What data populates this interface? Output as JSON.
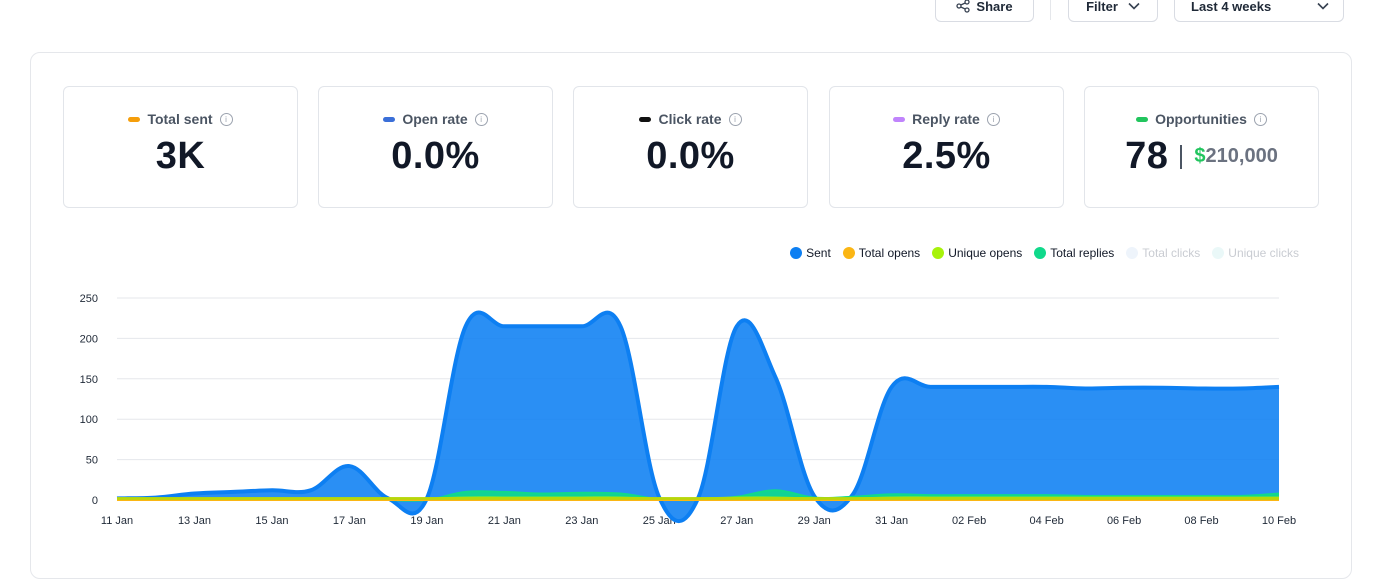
{
  "toolbar": {
    "share_label": "Share",
    "filter_label": "Filter",
    "range_label": "Last 4 weeks"
  },
  "stats": [
    {
      "label": "Total sent",
      "value": "3K",
      "color": "#f59e0b"
    },
    {
      "label": "Open rate",
      "value": "0.0%",
      "color": "#3b6fd8"
    },
    {
      "label": "Click rate",
      "value": "0.0%",
      "color": "#111111"
    },
    {
      "label": "Reply rate",
      "value": "2.5%",
      "color": "#c084fc"
    }
  ],
  "opportunities": {
    "label": "Opportunities",
    "count": "78",
    "currency": "$",
    "amount": "210,000",
    "color": "#22c55e"
  },
  "legend": [
    {
      "label": "Sent",
      "color": "#0d7ff2",
      "dim": false
    },
    {
      "label": "Total opens",
      "color": "#fbb614",
      "dim": false
    },
    {
      "label": "Unique opens",
      "color": "#a7f20b",
      "dim": false
    },
    {
      "label": "Total replies",
      "color": "#10d98b",
      "dim": false
    },
    {
      "label": "Total clicks",
      "color": "#eef4fb",
      "dim": true
    },
    {
      "label": "Unique clicks",
      "color": "#eaf8f8",
      "dim": true
    }
  ],
  "chart_data": {
    "type": "area",
    "ylim": [
      0,
      250
    ],
    "yticks": [
      0,
      50,
      100,
      150,
      200,
      250
    ],
    "x": [
      "11 Jan",
      "12 Jan",
      "13 Jan",
      "14 Jan",
      "15 Jan",
      "16 Jan",
      "17 Jan",
      "18 Jan",
      "19 Jan",
      "20 Jan",
      "21 Jan",
      "22 Jan",
      "23 Jan",
      "24 Jan",
      "25 Jan",
      "26 Jan",
      "27 Jan",
      "28 Jan",
      "29 Jan",
      "30 Jan",
      "31 Jan",
      "01 Feb",
      "02 Feb",
      "03 Feb",
      "04 Feb",
      "05 Feb",
      "06 Feb",
      "07 Feb",
      "08 Feb",
      "09 Feb",
      "10 Feb"
    ],
    "xticks": [
      "11 Jan",
      "13 Jan",
      "15 Jan",
      "17 Jan",
      "19 Jan",
      "21 Jan",
      "23 Jan",
      "25 Jan",
      "27 Jan",
      "29 Jan",
      "31 Jan",
      "02 Feb",
      "04 Feb",
      "06 Feb",
      "08 Feb",
      "10 Feb"
    ],
    "series": [
      {
        "name": "Sent",
        "color": "#0d7ff2",
        "values": [
          2,
          3,
          8,
          10,
          12,
          12,
          42,
          2,
          2,
          215,
          215,
          215,
          215,
          215,
          3,
          2,
          215,
          152,
          5,
          7,
          140,
          140,
          140,
          140,
          140,
          138,
          139,
          139,
          138,
          138,
          140
        ]
      },
      {
        "name": "Total replies",
        "color": "#10d98b",
        "values": [
          0,
          0,
          1,
          1,
          1,
          1,
          2,
          0,
          0,
          10,
          10,
          8,
          9,
          8,
          1,
          0,
          4,
          12,
          3,
          4,
          7,
          6,
          6,
          6,
          6,
          5,
          5,
          5,
          5,
          5,
          8
        ]
      },
      {
        "name": "Unique opens",
        "color": "#a7f20b",
        "values": [
          2,
          2,
          2,
          2,
          2,
          2,
          2,
          2,
          2,
          3,
          3,
          3,
          3,
          3,
          2,
          2,
          3,
          3,
          2,
          2,
          3,
          3,
          3,
          3,
          3,
          3,
          3,
          3,
          3,
          3,
          3
        ]
      },
      {
        "name": "Total opens",
        "color": "#fbb614",
        "values": [
          0,
          0,
          0,
          0,
          0,
          0,
          0,
          0,
          0,
          0,
          0,
          0,
          0,
          0,
          0,
          0,
          0,
          0,
          0,
          0,
          0,
          0,
          0,
          0,
          0,
          0,
          0,
          0,
          0,
          0,
          0
        ]
      }
    ]
  }
}
